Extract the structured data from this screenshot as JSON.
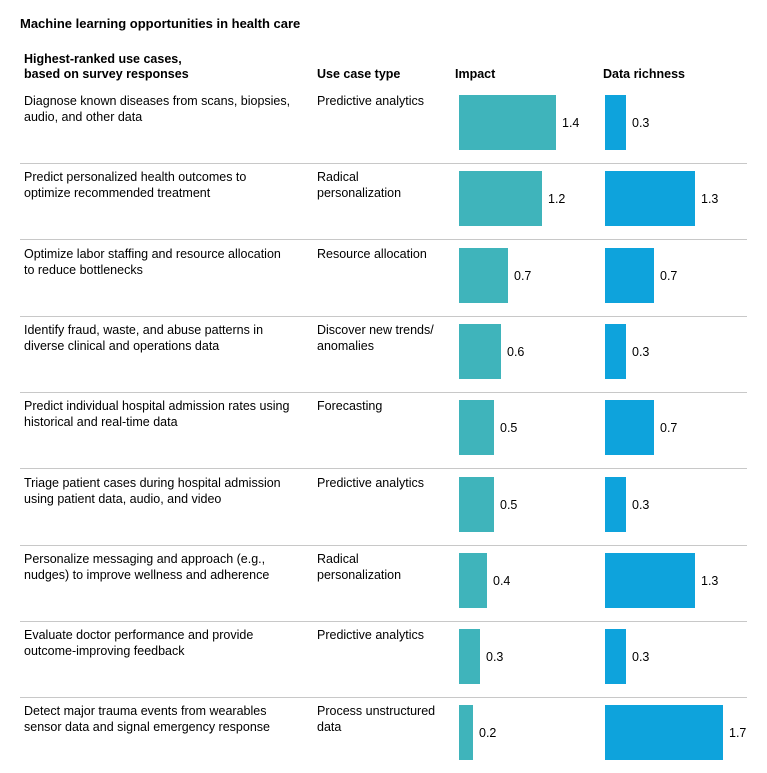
{
  "title": "Machine learning opportunities in health care",
  "headers": {
    "use_case_line1": "Highest-ranked use cases,",
    "use_case_line2": "based on survey responses",
    "type": "Use case type",
    "impact": "Impact",
    "data": "Data richness"
  },
  "colors": {
    "impact": "#3fb4bb",
    "data_richness": "#0ea3dc",
    "divider": "#c8c8c8"
  },
  "chart_data": {
    "type": "bar",
    "title": "Machine learning opportunities in health care",
    "categories": [
      "Diagnose known diseases from scans, biopsies, audio, and other data",
      "Predict personalized health outcomes to optimize recommended treatment",
      "Optimize labor staffing and resource allocation to reduce bottlenecks",
      "Identify fraud, waste, and abuse patterns in diverse clinical and operations data",
      "Predict individual hospital admission rates using historical and real-time data",
      "Triage patient cases during hospital admission using patient data, audio, and video",
      "Personalize messaging and approach (e.g., nudges) to improve wellness and adherence",
      "Evaluate doctor performance and provide outcome-improving feedback",
      "Detect major trauma events from wearables sensor data and signal emergency response"
    ],
    "series": [
      {
        "name": "Impact",
        "values": [
          1.4,
          1.2,
          0.7,
          0.6,
          0.5,
          0.5,
          0.4,
          0.3,
          0.2
        ]
      },
      {
        "name": "Data richness",
        "values": [
          0.3,
          1.3,
          0.7,
          0.3,
          0.7,
          0.3,
          1.3,
          0.3,
          1.7
        ]
      }
    ],
    "xlim": [
      0,
      1.7
    ],
    "grid": false,
    "legend": "none",
    "rows": [
      {
        "use_case_lines": [
          "Diagnose known diseases from scans, biopsies,",
          "audio, and other data"
        ],
        "type_lines": [
          "Predictive analytics"
        ],
        "impact": 1.4,
        "impact_label": "1.4",
        "data": 0.3,
        "data_label": "0.3"
      },
      {
        "use_case_lines": [
          "Predict personalized health outcomes to",
          "optimize recommended treatment"
        ],
        "type_lines": [
          "Radical",
          "personalization"
        ],
        "impact": 1.2,
        "impact_label": "1.2",
        "data": 1.3,
        "data_label": "1.3"
      },
      {
        "use_case_lines": [
          "Optimize labor staffing and resource allocation",
          "to reduce bottlenecks"
        ],
        "type_lines": [
          "Resource allocation"
        ],
        "impact": 0.7,
        "impact_label": "0.7",
        "data": 0.7,
        "data_label": "0.7"
      },
      {
        "use_case_lines": [
          "Identify fraud, waste, and abuse patterns in",
          "diverse clinical and operations data"
        ],
        "type_lines": [
          "Discover new trends/",
          "anomalies"
        ],
        "impact": 0.6,
        "impact_label": "0.6",
        "data": 0.3,
        "data_label": "0.3"
      },
      {
        "use_case_lines": [
          "Predict individual hospital admission rates using",
          "historical and real-time data"
        ],
        "type_lines": [
          "Forecasting"
        ],
        "impact": 0.5,
        "impact_label": "0.5",
        "data": 0.7,
        "data_label": "0.7"
      },
      {
        "use_case_lines": [
          "Triage patient cases during hospital admission",
          "using patient data, audio, and video"
        ],
        "type_lines": [
          "Predictive analytics"
        ],
        "impact": 0.5,
        "impact_label": "0.5",
        "data": 0.3,
        "data_label": "0.3"
      },
      {
        "use_case_lines": [
          "Personalize messaging and approach (e.g.,",
          "nudges) to improve wellness and adherence"
        ],
        "type_lines": [
          "Radical",
          "personalization"
        ],
        "impact": 0.4,
        "impact_label": "0.4",
        "data": 1.3,
        "data_label": "1.3"
      },
      {
        "use_case_lines": [
          "Evaluate doctor performance and provide",
          "outcome-improving feedback"
        ],
        "type_lines": [
          "Predictive analytics"
        ],
        "impact": 0.3,
        "impact_label": "0.3",
        "data": 0.3,
        "data_label": "0.3"
      },
      {
        "use_case_lines": [
          "Detect major trauma events from wearables",
          "sensor data and signal emergency response"
        ],
        "type_lines": [
          "Process unstructured",
          "data"
        ],
        "impact": 0.2,
        "impact_label": "0.2",
        "data": 1.7,
        "data_label": "1.7"
      }
    ]
  }
}
